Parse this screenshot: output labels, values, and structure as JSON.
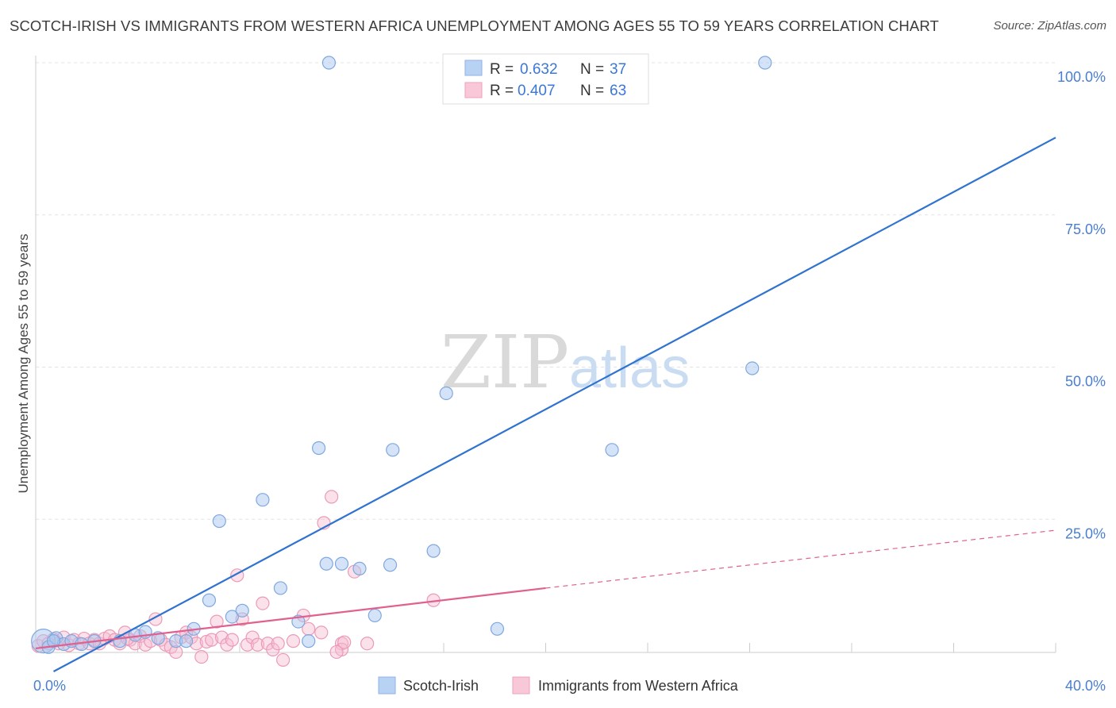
{
  "title": "SCOTCH-IRISH VS IMMIGRANTS FROM WESTERN AFRICA UNEMPLOYMENT AMONG AGES 55 TO 59 YEARS CORRELATION CHART",
  "source": "Source: ZipAtlas.com",
  "watermark": {
    "zip": "ZIP",
    "atlas": "atlas"
  },
  "legend": {
    "r_label": "R =",
    "n_label": "N =",
    "series": [
      {
        "r": "0.632",
        "n": "37"
      },
      {
        "r": "0.407",
        "n": "63"
      }
    ]
  },
  "chart_data": {
    "type": "scatter",
    "title": "SCOTCH-IRISH VS IMMIGRANTS FROM WESTERN AFRICA UNEMPLOYMENT AMONG AGES 55 TO 59 YEARS CORRELATION CHART",
    "xlabel": "",
    "ylabel": "Unemployment Among Ages 55 to 59 years",
    "xlim": [
      0,
      40
    ],
    "ylim": [
      0,
      100
    ],
    "x_tick_labels": [
      "0.0%",
      "40.0%"
    ],
    "y_ticks": [
      25,
      50,
      75,
      100
    ],
    "y_tick_labels": [
      "25.0%",
      "50.0%",
      "75.0%",
      "100.0%"
    ],
    "grid": true,
    "colors": {
      "scotch_irish": "#a9c8f0",
      "scotch_irish_line": "#2f73d0",
      "wafrica": "#f6bcd0",
      "wafrica_line": "#e0608e"
    },
    "series": [
      {
        "name": "Scotch-Irish",
        "r": 0.632,
        "n": 37,
        "points": [
          [
            0.3,
            5.0
          ],
          [
            0.5,
            4.0
          ],
          [
            0.8,
            5.5
          ],
          [
            1.1,
            4.5
          ],
          [
            1.4,
            5.0
          ],
          [
            1.8,
            4.5
          ],
          [
            2.3,
            5.0
          ],
          [
            3.3,
            5.0
          ],
          [
            3.9,
            6.0
          ],
          [
            4.3,
            6.5
          ],
          [
            4.8,
            5.5
          ],
          [
            5.5,
            5.0
          ],
          [
            6.2,
            7.0
          ],
          [
            6.8,
            11.7
          ],
          [
            7.2,
            24.7
          ],
          [
            7.7,
            9.0
          ],
          [
            8.1,
            10.0
          ],
          [
            8.9,
            28.2
          ],
          [
            9.6,
            13.7
          ],
          [
            10.3,
            8.2
          ],
          [
            10.7,
            5.0
          ],
          [
            11.1,
            36.7
          ],
          [
            11.4,
            17.7
          ],
          [
            12.0,
            17.7
          ],
          [
            12.7,
            16.9
          ],
          [
            13.3,
            9.2
          ],
          [
            13.9,
            17.5
          ],
          [
            14.0,
            36.4
          ],
          [
            15.6,
            19.8
          ],
          [
            16.1,
            45.7
          ],
          [
            18.1,
            7.0
          ],
          [
            22.6,
            36.4
          ],
          [
            28.1,
            49.8
          ],
          [
            11.5,
            100
          ],
          [
            28.6,
            100
          ],
          [
            0.7,
            5.0
          ],
          [
            5.9,
            5.0
          ]
        ]
      },
      {
        "name": "Immigrants from Western Africa",
        "r": 0.407,
        "n": 63,
        "points": [
          [
            0.1,
            4.2
          ],
          [
            0.3,
            5.0
          ],
          [
            0.5,
            4.6
          ],
          [
            0.7,
            5.3
          ],
          [
            0.9,
            4.6
          ],
          [
            1.1,
            5.6
          ],
          [
            1.3,
            4.3
          ],
          [
            1.5,
            5.2
          ],
          [
            1.7,
            4.6
          ],
          [
            1.9,
            5.4
          ],
          [
            2.1,
            4.6
          ],
          [
            2.3,
            5.2
          ],
          [
            2.5,
            4.6
          ],
          [
            2.7,
            5.4
          ],
          [
            2.9,
            5.8
          ],
          [
            3.1,
            5.2
          ],
          [
            3.3,
            4.6
          ],
          [
            3.5,
            6.4
          ],
          [
            3.7,
            5.2
          ],
          [
            3.9,
            4.6
          ],
          [
            4.1,
            5.8
          ],
          [
            4.3,
            4.4
          ],
          [
            4.5,
            5.0
          ],
          [
            4.7,
            8.6
          ],
          [
            4.9,
            5.2
          ],
          [
            5.1,
            4.4
          ],
          [
            5.3,
            4.0
          ],
          [
            5.5,
            3.2
          ],
          [
            5.7,
            5.6
          ],
          [
            5.9,
            6.4
          ],
          [
            6.1,
            5.6
          ],
          [
            6.3,
            4.6
          ],
          [
            6.5,
            2.4
          ],
          [
            6.7,
            4.9
          ],
          [
            6.9,
            5.2
          ],
          [
            7.1,
            8.2
          ],
          [
            7.3,
            5.6
          ],
          [
            7.5,
            4.4
          ],
          [
            7.7,
            5.2
          ],
          [
            7.9,
            15.8
          ],
          [
            8.1,
            8.6
          ],
          [
            8.3,
            4.4
          ],
          [
            8.5,
            5.6
          ],
          [
            8.7,
            4.4
          ],
          [
            8.9,
            11.2
          ],
          [
            9.1,
            4.6
          ],
          [
            9.3,
            3.6
          ],
          [
            9.5,
            4.6
          ],
          [
            9.7,
            1.9
          ],
          [
            10.1,
            5.0
          ],
          [
            10.5,
            9.2
          ],
          [
            10.7,
            7.0
          ],
          [
            11.3,
            24.4
          ],
          [
            11.6,
            28.7
          ],
          [
            12.0,
            4.6
          ],
          [
            12.5,
            16.4
          ],
          [
            12.0,
            3.6
          ],
          [
            13.0,
            4.6
          ],
          [
            15.6,
            11.7
          ],
          [
            11.2,
            6.4
          ],
          [
            11.8,
            3.2
          ],
          [
            12.1,
            4.8
          ],
          [
            3.6,
            5.4
          ]
        ]
      }
    ],
    "trendlines": [
      {
        "series": "Scotch-Irish",
        "x": [
          0.7,
          40
        ],
        "y": [
          0,
          87.7
        ],
        "style": "solid"
      },
      {
        "series": "Immigrants from Western Africa",
        "x": [
          0,
          20
        ],
        "y": [
          3.8,
          13.7
        ],
        "style": "solid"
      },
      {
        "series": "Immigrants from Western Africa",
        "x": [
          20,
          40
        ],
        "y": [
          13.7,
          23.2
        ],
        "style": "dashed"
      }
    ]
  }
}
